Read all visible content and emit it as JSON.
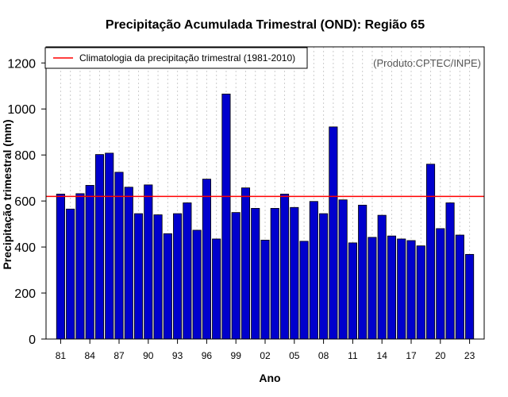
{
  "chart_data": {
    "type": "bar",
    "title": "Precipitação Acumulada Trimestral (OND): Região 65",
    "xlabel": "Ano",
    "ylabel": "Precipitação trimestral (mm)",
    "ylim": [
      0,
      1270
    ],
    "xlim_years": [
      1979.5,
      2024.5
    ],
    "yticks": [
      0,
      200,
      400,
      600,
      800,
      1000,
      1200
    ],
    "xtick_years": [
      1981,
      1984,
      1987,
      1990,
      1993,
      1996,
      1999,
      2002,
      2005,
      2008,
      2011,
      2014,
      2017,
      2020,
      2023
    ],
    "xtick_labels": [
      "81",
      "84",
      "87",
      "90",
      "93",
      "96",
      "99",
      "02",
      "05",
      "08",
      "11",
      "14",
      "17",
      "20",
      "23"
    ],
    "years": [
      1981,
      1982,
      1983,
      1984,
      1985,
      1986,
      1987,
      1988,
      1989,
      1990,
      1991,
      1992,
      1993,
      1994,
      1995,
      1996,
      1997,
      1998,
      1999,
      2000,
      2001,
      2002,
      2003,
      2004,
      2005,
      2006,
      2007,
      2008,
      2009,
      2010,
      2011,
      2012,
      2013,
      2014,
      2015,
      2016,
      2017,
      2018,
      2019,
      2020,
      2021,
      2022,
      2023
    ],
    "values": [
      630,
      565,
      632,
      668,
      802,
      808,
      725,
      660,
      545,
      670,
      540,
      458,
      545,
      592,
      473,
      695,
      435,
      1065,
      550,
      657,
      568,
      430,
      568,
      630,
      572,
      425,
      598,
      545,
      922,
      605,
      418,
      582,
      442,
      538,
      448,
      435,
      428,
      405,
      760,
      480,
      592,
      452,
      368
    ],
    "climatology": 620,
    "legend": "Climatologia da precipitação trimestral (1981-2010)",
    "legend_position": "top-left",
    "credit": "(Produto:CPTEC/INPE)",
    "colors": {
      "bar_fill": "#0000CD",
      "bar_stroke": "#000000",
      "climatology_line": "#FF0000",
      "grid": "#CCCCCC"
    }
  }
}
